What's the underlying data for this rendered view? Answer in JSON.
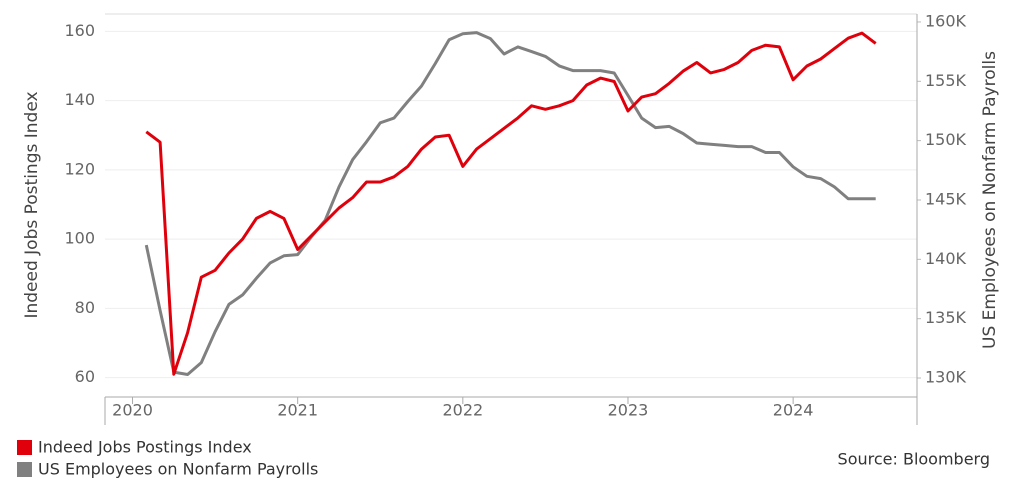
{
  "chart_data": {
    "type": "line",
    "ylabel": "Indeed Jobs Postings Index",
    "y2label": "US Employees on Nonfarm Payrolls",
    "source": "Source: Bloomberg",
    "x": [
      "2020-02",
      "2020-03",
      "2020-04",
      "2020-05",
      "2020-06",
      "2020-07",
      "2020-08",
      "2020-09",
      "2020-10",
      "2020-11",
      "2020-12",
      "2021-01",
      "2021-02",
      "2021-03",
      "2021-04",
      "2021-05",
      "2021-06",
      "2021-07",
      "2021-08",
      "2021-09",
      "2021-10",
      "2021-11",
      "2021-12",
      "2022-01",
      "2022-02",
      "2022-03",
      "2022-04",
      "2022-05",
      "2022-06",
      "2022-07",
      "2022-08",
      "2022-09",
      "2022-10",
      "2022-11",
      "2022-12",
      "2023-01",
      "2023-02",
      "2023-03",
      "2023-04",
      "2023-05",
      "2023-06",
      "2023-07",
      "2023-08",
      "2023-09",
      "2023-10",
      "2023-11",
      "2023-12",
      "2024-01",
      "2024-02",
      "2024-03",
      "2024-04",
      "2024-05",
      "2024-06",
      "2024-07"
    ],
    "xlim": [
      "2019-11",
      "2024-10"
    ],
    "xticks": [
      {
        "value": "2020-01",
        "label": "2020"
      },
      {
        "value": "2021-01",
        "label": "2021"
      },
      {
        "value": "2022-01",
        "label": "2022"
      },
      {
        "value": "2023-01",
        "label": "2023"
      },
      {
        "value": "2024-01",
        "label": "2024"
      }
    ],
    "ylim": [
      55,
      165
    ],
    "yticks": [
      60,
      80,
      100,
      120,
      140,
      160
    ],
    "y2lim": [
      128570,
      160670
    ],
    "y2ticks": [
      {
        "value": 130000,
        "label": "130K"
      },
      {
        "value": 135000,
        "label": "135K"
      },
      {
        "value": 140000,
        "label": "140K"
      },
      {
        "value": 145000,
        "label": "145K"
      },
      {
        "value": 150000,
        "label": "150K"
      },
      {
        "value": 155000,
        "label": "155K"
      },
      {
        "value": 160000,
        "label": "160K"
      }
    ],
    "grid": true,
    "series": [
      {
        "name": "Indeed Jobs Postings Index",
        "color": "#e0000b",
        "values": [
          131,
          128,
          61,
          73,
          89,
          91,
          96,
          100,
          106,
          108,
          106,
          97,
          101,
          105,
          109,
          112,
          116.5,
          116.5,
          118,
          121,
          126,
          129.5,
          130,
          121,
          126,
          129,
          132,
          135,
          138.5,
          137.5,
          138.5,
          140,
          144.5,
          146.5,
          145.5,
          137,
          141,
          142,
          145,
          148.5,
          151,
          148,
          149,
          151,
          154.5,
          156,
          155.5,
          146,
          150,
          152,
          155,
          158,
          159.5,
          156.5
        ]
      },
      {
        "name": "US Employees on Nonfarm Payrolls",
        "color": "#808080",
        "axis": "y2",
        "values": [
          141200,
          135700,
          130500,
          130300,
          131300,
          133900,
          136200,
          137000,
          138400,
          139700,
          140300,
          140400,
          141900,
          143300,
          146100,
          148400,
          149900,
          151500,
          151900,
          153300,
          154600,
          156500,
          158500,
          159000,
          159100,
          158600,
          157300,
          157900,
          157500,
          157100,
          156300,
          155900,
          155900,
          155900,
          155700,
          153800,
          151900,
          151100,
          151200,
          150600,
          149800,
          149700,
          149600,
          149500,
          149500,
          149000,
          149000,
          147800,
          147000,
          146800,
          146100,
          145100,
          145100,
          145100
        ]
      }
    ]
  }
}
